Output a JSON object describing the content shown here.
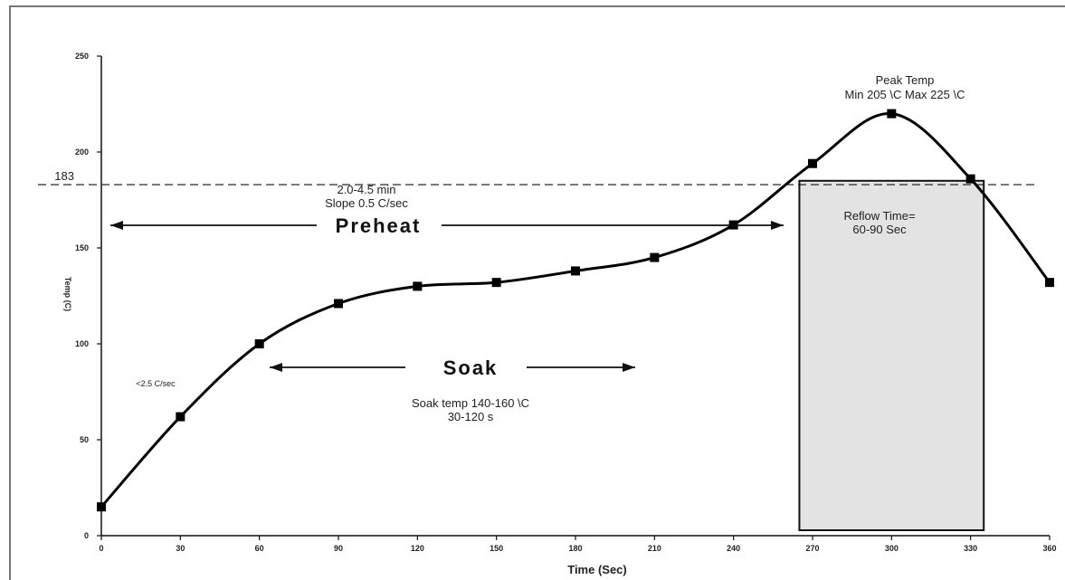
{
  "chart_data": {
    "type": "line",
    "xlabel": "Time (Sec)",
    "ylabel": "Temp (C)",
    "xlim": [
      0,
      360
    ],
    "ylim": [
      0,
      250
    ],
    "x_ticks": [
      "0",
      "30",
      "60",
      "90",
      "120",
      "150",
      "180",
      "210",
      "240",
      "270",
      "300",
      "330",
      "360"
    ],
    "y_ticks": [
      "0",
      "50",
      "100",
      "150",
      "200",
      "250"
    ],
    "reference_line": {
      "value": 183,
      "label": "183"
    },
    "series": [
      {
        "x": [
          0,
          30,
          60,
          90,
          120,
          150,
          180,
          210,
          240,
          270,
          300,
          330,
          360
        ],
        "values": [
          15,
          62,
          100,
          121,
          130,
          132,
          138,
          145,
          162,
          194,
          220,
          186,
          132
        ]
      }
    ],
    "annotations": {
      "preheat_range": "2.0-4.5 min",
      "preheat_slope": "Slope 0.5 C/sec",
      "preheat_label": "Preheat",
      "soak_label": "Soak",
      "soak_temp": "Soak temp 140-160 \\C",
      "soak_time": "30-120 s",
      "ramp_rate": "<2.5 C/sec",
      "peak_title": "Peak Temp",
      "peak_range": "Min 205 \\C Max 225 \\C",
      "reflow_title": "Reflow Time=",
      "reflow_range": "60-90 Sec"
    },
    "reflow_region": {
      "x_start": 265,
      "x_end": 335,
      "y_top": 185
    }
  }
}
